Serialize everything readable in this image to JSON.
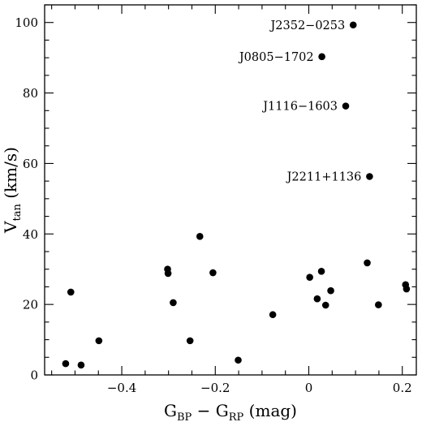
{
  "chart_data": {
    "type": "scatter",
    "xlabel": {
      "base": "G",
      "sub1": "BP",
      "mid": " − G",
      "sub2": "RP",
      "tail": " (mag)"
    },
    "ylabel": {
      "base": "V",
      "sub": "tan",
      "tail": " (km/s)"
    },
    "xlim": [
      -0.565,
      0.23
    ],
    "ylim": [
      0,
      105
    ],
    "xticks_major": [
      -0.4,
      -0.2,
      0,
      0.2
    ],
    "xtick_labels": [
      "−0.4",
      "−0.2",
      "0",
      "0.2"
    ],
    "yticks_major": [
      0,
      20,
      40,
      60,
      80,
      100
    ],
    "ytick_labels": [
      "0",
      "20",
      "40",
      "60",
      "80",
      "100"
    ],
    "grid": false,
    "points": [
      {
        "x": 0.095,
        "y": 99.3
      },
      {
        "x": 0.028,
        "y": 90.3
      },
      {
        "x": 0.079,
        "y": 76.3
      },
      {
        "x": 0.13,
        "y": 56.3
      },
      {
        "x": -0.52,
        "y": 3.2
      },
      {
        "x": -0.487,
        "y": 2.8
      },
      {
        "x": -0.509,
        "y": 23.5
      },
      {
        "x": -0.449,
        "y": 9.7
      },
      {
        "x": -0.302,
        "y": 30.0
      },
      {
        "x": -0.301,
        "y": 28.8
      },
      {
        "x": -0.29,
        "y": 20.5
      },
      {
        "x": -0.254,
        "y": 9.7
      },
      {
        "x": -0.233,
        "y": 39.3
      },
      {
        "x": -0.205,
        "y": 29.0
      },
      {
        "x": -0.151,
        "y": 4.2
      },
      {
        "x": -0.077,
        "y": 17.1
      },
      {
        "x": 0.002,
        "y": 27.7
      },
      {
        "x": 0.018,
        "y": 21.6
      },
      {
        "x": 0.027,
        "y": 29.4
      },
      {
        "x": 0.036,
        "y": 19.8
      },
      {
        "x": 0.047,
        "y": 23.9
      },
      {
        "x": 0.125,
        "y": 31.8
      },
      {
        "x": 0.149,
        "y": 19.9
      },
      {
        "x": 0.207,
        "y": 25.6
      },
      {
        "x": 0.209,
        "y": 24.4
      }
    ],
    "annotations": [
      {
        "text": "J2352−0253",
        "x": 0.095,
        "y": 99.3
      },
      {
        "text": "J0805−1702",
        "x": 0.028,
        "y": 90.3
      },
      {
        "text": "J1116−1603",
        "x": 0.079,
        "y": 76.3
      },
      {
        "text": "J2211+1136",
        "x": 0.13,
        "y": 56.3
      }
    ]
  }
}
